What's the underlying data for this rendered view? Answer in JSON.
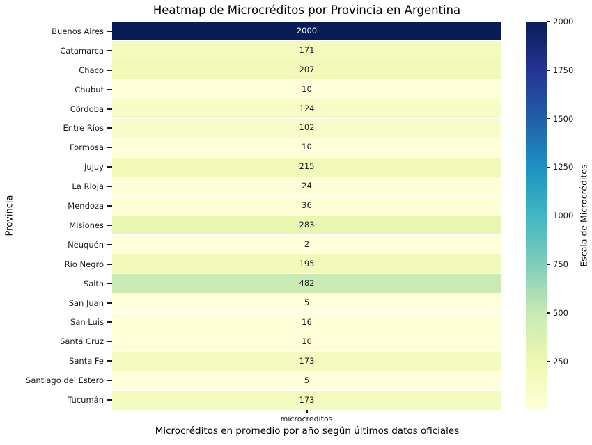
{
  "chart_data": {
    "type": "heatmap",
    "title": "Heatmap de Microcréditos por Provincia en Argentina",
    "xlabel": "Microcréditos en promedio por año según últimos datos oficiales",
    "ylabel": "Provincia",
    "columns": [
      "microcreditos"
    ],
    "rows": [
      "Buenos Aires",
      "Catamarca",
      "Chaco",
      "Chubut",
      "Córdoba",
      "Entre Ríos",
      "Formosa",
      "Jujuy",
      "La Rioja",
      "Mendoza",
      "Misiones",
      "Neuquén",
      "Río Negro",
      "Salta",
      "San Juan",
      "San Luis",
      "Santa Cruz",
      "Santa Fe",
      "Santiago del Estero",
      "Tucumán"
    ],
    "values": [
      [
        2000
      ],
      [
        171
      ],
      [
        207
      ],
      [
        10
      ],
      [
        124
      ],
      [
        102
      ],
      [
        10
      ],
      [
        215
      ],
      [
        24
      ],
      [
        36
      ],
      [
        283
      ],
      [
        2
      ],
      [
        195
      ],
      [
        482
      ],
      [
        5
      ],
      [
        16
      ],
      [
        10
      ],
      [
        173
      ],
      [
        5
      ],
      [
        173
      ]
    ],
    "vmin": 2,
    "vmax": 2000,
    "colormap": "YlGnBu",
    "colormap_stops": [
      "#ffffd9",
      "#edf8b1",
      "#c7e9b4",
      "#7fcdbb",
      "#41b6c4",
      "#1d91c0",
      "#225ea8",
      "#253494",
      "#081d58"
    ],
    "colorbar_label": "Escala de Microcréditos",
    "colorbar_ticks": [
      250,
      500,
      750,
      1000,
      1250,
      1500,
      1750,
      2000
    ],
    "legend_position": "right",
    "grid": false
  },
  "colors": {
    "background": "#ffffff",
    "text": "#1a1a1a",
    "annot_dark": "#1f1f1f",
    "annot_light": "#ffffff",
    "tick": "#1a1a1a"
  }
}
